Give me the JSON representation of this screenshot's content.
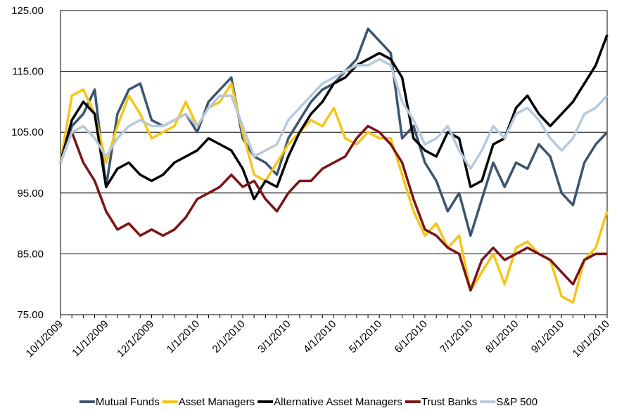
{
  "chart_data": {
    "type": "line",
    "categories": [
      "10/1/2009",
      null,
      null,
      null,
      "11/1/2009",
      null,
      null,
      null,
      "12/1/2009",
      null,
      null,
      null,
      "1/1/2010",
      null,
      null,
      null,
      "2/1/2010",
      null,
      null,
      null,
      "3/1/2010",
      null,
      null,
      null,
      "4/1/2010",
      null,
      null,
      null,
      "5/1/2010",
      null,
      null,
      null,
      "6/1/2010",
      null,
      null,
      null,
      "7/1/2010",
      null,
      null,
      null,
      "8/1/2010",
      null,
      null,
      null,
      "9/1/2010",
      null,
      null,
      null,
      "10/1/2010"
    ],
    "series": [
      {
        "name": "Mutual Funds",
        "color": "#3b5570",
        "values": [
          100,
          106,
          108,
          112,
          96,
          108,
          112,
          113,
          107,
          106,
          107,
          108,
          105,
          110,
          112,
          114,
          104,
          101,
          100,
          98,
          104,
          107,
          110,
          112,
          113,
          115,
          117,
          122,
          120,
          118,
          104,
          106,
          100,
          97,
          92,
          95,
          88,
          94,
          100,
          96,
          100,
          99,
          103,
          101,
          95,
          93,
          100,
          103,
          105
        ]
      },
      {
        "name": "Asset Managers",
        "color": "#f5c518",
        "values": [
          100,
          111,
          112,
          108,
          100,
          106,
          111,
          108,
          104,
          105,
          106,
          110,
          106,
          109,
          110,
          113,
          105,
          98,
          97,
          100,
          103,
          105,
          107,
          106,
          109,
          104,
          103,
          105,
          104,
          104,
          98,
          92,
          88,
          90,
          86,
          88,
          79,
          82,
          85,
          80,
          86,
          87,
          85,
          84,
          78,
          77,
          84,
          86,
          92
        ]
      },
      {
        "name": "Alternative Asset Managers",
        "color": "#000000",
        "values": [
          100,
          107,
          110,
          108,
          96,
          99,
          100,
          98,
          97,
          98,
          100,
          101,
          102,
          104,
          103,
          102,
          99,
          94,
          97,
          96,
          101,
          105,
          108,
          110,
          113,
          114,
          116,
          117,
          118,
          117,
          114,
          104,
          102,
          101,
          105,
          104,
          96,
          97,
          103,
          104,
          109,
          111,
          108,
          106,
          108,
          110,
          113,
          116,
          121
        ]
      },
      {
        "name": "Trust Banks",
        "color": "#7b1416",
        "values": [
          100,
          105,
          100,
          97,
          92,
          89,
          90,
          88,
          89,
          88,
          89,
          91,
          94,
          95,
          96,
          98,
          96,
          97,
          94,
          92,
          95,
          97,
          97,
          99,
          100,
          101,
          104,
          106,
          105,
          103,
          100,
          94,
          89,
          88,
          86,
          85,
          79,
          84,
          86,
          84,
          85,
          86,
          85,
          84,
          82,
          80,
          84,
          85,
          85
        ]
      },
      {
        "name": "S&P 500",
        "color": "#b8c9dc",
        "values": [
          100,
          105,
          106,
          104,
          101,
          104,
          106,
          107,
          106,
          106,
          107,
          108,
          106,
          109,
          111,
          111,
          106,
          101,
          102,
          103,
          107,
          109,
          111,
          113,
          114,
          115,
          116,
          116,
          117,
          116,
          110,
          107,
          103,
          104,
          106,
          102,
          99,
          102,
          106,
          104,
          108,
          109,
          107,
          104,
          102,
          104,
          108,
          109,
          111
        ]
      }
    ],
    "ylim": [
      75,
      125
    ],
    "yticks": [
      {
        "value": 75,
        "label": "75.00"
      },
      {
        "value": 85,
        "label": "85.00"
      },
      {
        "value": 95,
        "label": "95.00"
      },
      {
        "value": 105,
        "label": "105.00"
      },
      {
        "value": 115,
        "label": "115.00"
      },
      {
        "value": 125,
        "label": "125.00"
      }
    ],
    "grid": true,
    "legend": "bottom"
  }
}
